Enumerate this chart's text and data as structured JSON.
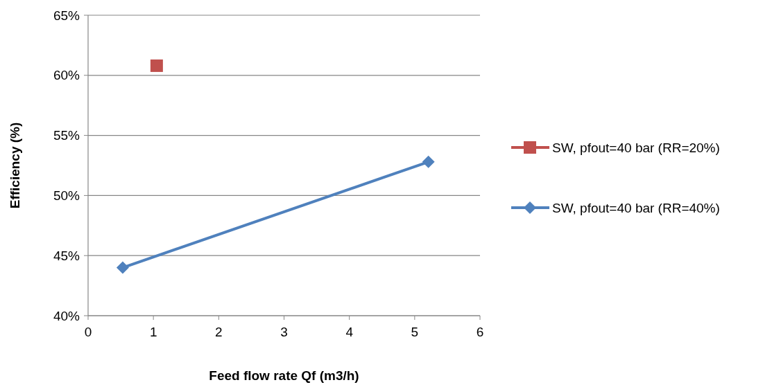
{
  "chart_data": {
    "type": "line",
    "xlabel": "Feed flow rate Qf (m3/h)",
    "ylabel": "Efficiency (%)",
    "xlim": [
      0,
      6
    ],
    "xticks": [
      0,
      1,
      2,
      3,
      4,
      5,
      6
    ],
    "ylim": [
      40,
      65
    ],
    "yticks": [
      {
        "value": 40,
        "label": "40%"
      },
      {
        "value": 45,
        "label": "45%"
      },
      {
        "value": 50,
        "label": "50%"
      },
      {
        "value": 55,
        "label": "55%"
      },
      {
        "value": 60,
        "label": "60%"
      },
      {
        "value": 65,
        "label": "65%"
      }
    ],
    "grid": "y",
    "legend": "right",
    "line_style": "solid",
    "series": [
      {
        "name": "SW, pfout=40 bar (RR=20%)",
        "color": "#c0504d",
        "marker": "square",
        "x": [
          1.05
        ],
        "values": [
          60.8
        ]
      },
      {
        "name": "SW, pfout=40 bar (RR=40%)",
        "color": "#4f81bd",
        "marker": "diamond",
        "x": [
          0.53,
          5.21
        ],
        "values": [
          44,
          52.8
        ]
      }
    ]
  }
}
